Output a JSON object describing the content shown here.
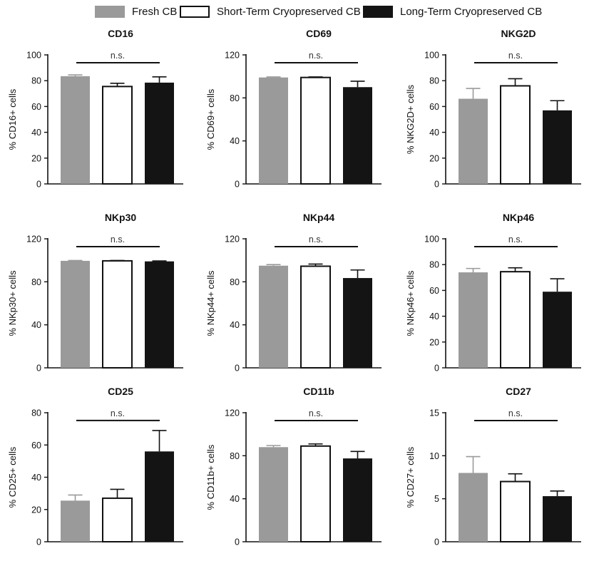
{
  "legend": {
    "items": [
      {
        "label": "Fresh CB",
        "color": "#9a9a9a"
      },
      {
        "label": "Short-Term Cryopreserved CB",
        "color": "#ffffff"
      },
      {
        "label": "Long-Term Cryopreserved CB",
        "color": "#141414"
      }
    ]
  },
  "chart_data": [
    {
      "type": "bar",
      "title": "CD16",
      "ylabel": "% CD16+ cells",
      "ylim": [
        0,
        100
      ],
      "yticks": [
        0,
        20,
        40,
        60,
        80,
        100
      ],
      "categories": [
        "Fresh CB",
        "Short-Term Cryopreserved CB",
        "Long-Term Cryopreserved CB"
      ],
      "values": [
        83.5,
        75.5,
        78.5
      ],
      "errors": [
        1,
        2.5,
        4.5
      ],
      "annotation": "n.s."
    },
    {
      "type": "bar",
      "title": "CD69",
      "ylabel": "% CD69+ cells",
      "ylim": [
        0,
        120
      ],
      "yticks": [
        0,
        40,
        80,
        120
      ],
      "categories": [
        "Fresh CB",
        "Short-Term Cryopreserved CB",
        "Long-Term Cryopreserved CB"
      ],
      "values": [
        99,
        99,
        90
      ],
      "errors": [
        0.5,
        0.5,
        5.5
      ],
      "annotation": "n.s."
    },
    {
      "type": "bar",
      "title": "NKG2D",
      "ylabel": "% NKG2D+ cells",
      "ylim": [
        0,
        100
      ],
      "yticks": [
        0,
        20,
        40,
        60,
        80,
        100
      ],
      "categories": [
        "Fresh CB",
        "Short-Term Cryopreserved CB",
        "Long-Term Cryopreserved CB"
      ],
      "values": [
        66,
        76,
        57
      ],
      "errors": [
        8,
        5.5,
        7.5
      ],
      "annotation": "n.s."
    },
    {
      "type": "bar",
      "title": "NKp30",
      "ylabel": "% NKp30+ cells",
      "ylim": [
        0,
        120
      ],
      "yticks": [
        0,
        40,
        80,
        120
      ],
      "categories": [
        "Fresh CB",
        "Short-Term Cryopreserved CB",
        "Long-Term Cryopreserved CB"
      ],
      "values": [
        99.5,
        99.5,
        99
      ],
      "errors": [
        0.3,
        0.3,
        0.4
      ],
      "annotation": "n.s."
    },
    {
      "type": "bar",
      "title": "NKp44",
      "ylabel": "% NKp44+ cells",
      "ylim": [
        0,
        120
      ],
      "yticks": [
        0,
        40,
        80,
        120
      ],
      "categories": [
        "Fresh CB",
        "Short-Term Cryopreserved CB",
        "Long-Term Cryopreserved CB"
      ],
      "values": [
        95,
        94.5,
        83.5
      ],
      "errors": [
        1,
        2,
        7.5
      ],
      "annotation": "n.s."
    },
    {
      "type": "bar",
      "title": "NKp46",
      "ylabel": "% NKp46+ cells",
      "ylim": [
        0,
        100
      ],
      "yticks": [
        0,
        20,
        40,
        60,
        80,
        100
      ],
      "categories": [
        "Fresh CB",
        "Short-Term Cryopreserved CB",
        "Long-Term Cryopreserved CB"
      ],
      "values": [
        74,
        74.5,
        59
      ],
      "errors": [
        3,
        3,
        10
      ],
      "annotation": "n.s."
    },
    {
      "type": "bar",
      "title": "CD25",
      "ylabel": "% CD25+ cells",
      "ylim": [
        0,
        80
      ],
      "yticks": [
        0,
        20,
        40,
        60,
        80
      ],
      "categories": [
        "Fresh CB",
        "Short-Term Cryopreserved CB",
        "Long-Term Cryopreserved CB"
      ],
      "values": [
        25.5,
        27,
        56
      ],
      "errors": [
        3.5,
        5.5,
        13
      ],
      "annotation": "n.s."
    },
    {
      "type": "bar",
      "title": "CD11b",
      "ylabel": "% CD11b+ cells",
      "ylim": [
        0,
        120
      ],
      "yticks": [
        0,
        40,
        80,
        120
      ],
      "categories": [
        "Fresh CB",
        "Short-Term Cryopreserved CB",
        "Long-Term Cryopreserved CB"
      ],
      "values": [
        88,
        89,
        77.5
      ],
      "errors": [
        1.5,
        2,
        6.5
      ],
      "annotation": "n.s."
    },
    {
      "type": "bar",
      "title": "CD27",
      "ylabel": "% CD27+ cells",
      "ylim": [
        0,
        15
      ],
      "yticks": [
        0,
        5,
        10,
        15
      ],
      "categories": [
        "Fresh CB",
        "Short-Term Cryopreserved CB",
        "Long-Term Cryopreserved CB"
      ],
      "values": [
        8,
        7,
        5.3
      ],
      "errors": [
        1.9,
        0.9,
        0.6
      ],
      "annotation": "n.s."
    }
  ]
}
